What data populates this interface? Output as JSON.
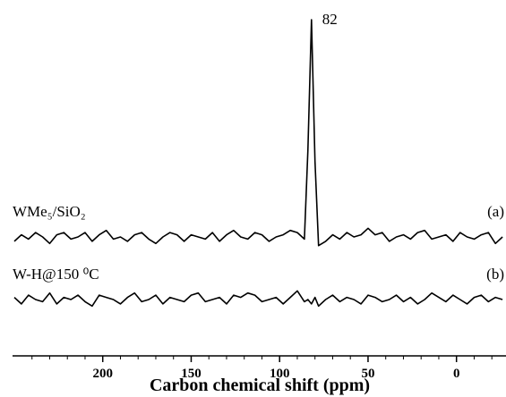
{
  "chart_data": {
    "type": "line",
    "xlabel": "Carbon chemical shift (ppm)",
    "xlim": [
      251,
      -28
    ],
    "xticks": [
      200,
      150,
      100,
      50,
      0
    ],
    "xminorticks": [
      240,
      230,
      220,
      210,
      190,
      180,
      170,
      160,
      140,
      130,
      120,
      110,
      90,
      80,
      70,
      60,
      40,
      30,
      20,
      10,
      -10,
      -20
    ],
    "annotations": [
      {
        "text": "82",
        "x": 82
      }
    ],
    "x": [
      250,
      246,
      242,
      238,
      234,
      230,
      226,
      222,
      218,
      214,
      210,
      206,
      202,
      198,
      194,
      190,
      186,
      182,
      178,
      174,
      170,
      166,
      162,
      158,
      154,
      150,
      146,
      142,
      138,
      134,
      130,
      126,
      122,
      118,
      114,
      110,
      106,
      102,
      98,
      94,
      90,
      86,
      84,
      82,
      80,
      78,
      74,
      70,
      66,
      62,
      58,
      54,
      50,
      46,
      42,
      38,
      34,
      30,
      26,
      22,
      18,
      14,
      10,
      6,
      2,
      -2,
      -6,
      -10,
      -14,
      -18,
      -22,
      -26
    ],
    "series": [
      {
        "name": "WMe₅/SiO₂",
        "tag": "(a)",
        "color": "#000000",
        "values": [
          -2,
          1,
          -1,
          2,
          0,
          -3,
          1,
          2,
          -1,
          0,
          2,
          -2,
          1,
          3,
          -1,
          0,
          -2,
          1,
          2,
          -1,
          -3,
          0,
          2,
          1,
          -2,
          1,
          0,
          -1,
          2,
          -2,
          1,
          3,
          0,
          -1,
          2,
          1,
          -2,
          0,
          1,
          3,
          2,
          -1,
          40,
          100,
          35,
          -4,
          -2,
          1,
          -1,
          2,
          0,
          1,
          4,
          1,
          2,
          -2,
          0,
          1,
          -1,
          2,
          3,
          -1,
          0,
          1,
          -2,
          2,
          0,
          -1,
          1,
          2,
          -3,
          0
        ]
      },
      {
        "name": "W-H@150 ⁰C",
        "tag": "(b)",
        "color": "#000000",
        "values": [
          1,
          -2,
          2,
          0,
          -1,
          3,
          -2,
          1,
          0,
          2,
          -1,
          -3,
          2,
          1,
          0,
          -2,
          1,
          3,
          -1,
          0,
          2,
          -2,
          1,
          0,
          -1,
          2,
          3,
          -1,
          0,
          1,
          -2,
          2,
          1,
          3,
          2,
          -1,
          0,
          1,
          -2,
          1,
          4,
          -1,
          0,
          -2,
          1,
          -3,
          0,
          2,
          -1,
          1,
          0,
          -2,
          2,
          1,
          -1,
          0,
          2,
          -1,
          1,
          -2,
          0,
          3,
          1,
          -1,
          2,
          0,
          -2,
          1,
          2,
          -1,
          1,
          0
        ]
      }
    ]
  }
}
